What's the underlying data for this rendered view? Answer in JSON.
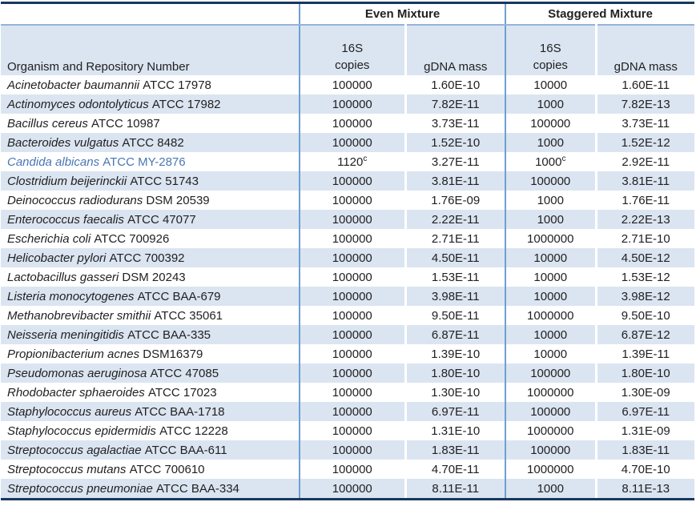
{
  "table": {
    "group_headers": {
      "even": "Even Mixture",
      "staggered": "Staggered Mixture"
    },
    "organism_header": "Organism and Repository Number",
    "sub_headers": {
      "copies_line1": "16S",
      "copies_line2": "copies",
      "gdna": "gDNA mass"
    },
    "colors": {
      "row_shading": "#dbe5f1",
      "section_divider_blue": "#6f9fd3",
      "header_underline_blue": "#95b3d7",
      "outer_rule_dark": "#17375e",
      "highlight_text_blue": "#4877b3"
    },
    "rows": [
      {
        "species": "Acinetobacter baumannii",
        "repo": "ATCC 17978",
        "even_copies": "100000",
        "even_gdna": "1.60E-10",
        "stag_copies": "10000",
        "stag_gdna": "1.60E-11"
      },
      {
        "species": "Actinomyces odontolyticus",
        "repo": "ATCC 17982",
        "even_copies": "100000",
        "even_gdna": "7.82E-11",
        "stag_copies": "1000",
        "stag_gdna": "7.82E-13"
      },
      {
        "species": "Bacillus cereus",
        "repo": "ATCC 10987",
        "even_copies": "100000",
        "even_gdna": "3.73E-11",
        "stag_copies": "100000",
        "stag_gdna": "3.73E-11"
      },
      {
        "species": "Bacteroides vulgatus",
        "repo": "ATCC 8482",
        "even_copies": "100000",
        "even_gdna": "1.52E-10",
        "stag_copies": "1000",
        "stag_gdna": "1.52E-12"
      },
      {
        "species": "Candida albicans",
        "repo": "ATCC MY-2876",
        "even_copies": "1120",
        "even_copies_sup": "c",
        "even_gdna": "3.27E-11",
        "stag_copies": "1000",
        "stag_copies_sup": "c",
        "stag_gdna": "2.92E-11",
        "highlight": true
      },
      {
        "species": "Clostridium beijerinckii",
        "repo": "ATCC 51743",
        "even_copies": "100000",
        "even_gdna": "3.81E-11",
        "stag_copies": "100000",
        "stag_gdna": "3.81E-11"
      },
      {
        "species": "Deinococcus radiodurans",
        "repo": "DSM 20539",
        "even_copies": "100000",
        "even_gdna": "1.76E-09",
        "stag_copies": "1000",
        "stag_gdna": "1.76E-11"
      },
      {
        "species": "Enterococcus faecalis",
        "repo": "ATCC 47077",
        "even_copies": "100000",
        "even_gdna": "2.22E-11",
        "stag_copies": "1000",
        "stag_gdna": "2.22E-13"
      },
      {
        "species": "Escherichia coli",
        "repo": "ATCC 700926",
        "even_copies": "100000",
        "even_gdna": "2.71E-11",
        "stag_copies": "1000000",
        "stag_gdna": "2.71E-10"
      },
      {
        "species": "Helicobacter pylori",
        "repo": "ATCC 700392",
        "even_copies": "100000",
        "even_gdna": "4.50E-11",
        "stag_copies": "10000",
        "stag_gdna": "4.50E-12"
      },
      {
        "species": "Lactobacillus gasseri",
        "repo": "DSM 20243",
        "even_copies": "100000",
        "even_gdna": "1.53E-11",
        "stag_copies": "10000",
        "stag_gdna": "1.53E-12"
      },
      {
        "species": "Listeria monocytogenes",
        "repo": "ATCC BAA-679",
        "even_copies": "100000",
        "even_gdna": "3.98E-11",
        "stag_copies": "10000",
        "stag_gdna": "3.98E-12"
      },
      {
        "species": "Methanobrevibacter smithii",
        "repo": "ATCC 35061",
        "even_copies": "100000",
        "even_gdna": "9.50E-11",
        "stag_copies": "1000000",
        "stag_gdna": "9.50E-10"
      },
      {
        "species": "Neisseria meningitidis",
        "repo": "ATCC BAA-335",
        "even_copies": "100000",
        "even_gdna": "6.87E-11",
        "stag_copies": "10000",
        "stag_gdna": "6.87E-12"
      },
      {
        "species": "Propionibacterium acnes",
        "repo": "DSM16379",
        "even_copies": "100000",
        "even_gdna": "1.39E-10",
        "stag_copies": "10000",
        "stag_gdna": "1.39E-11"
      },
      {
        "species": "Pseudomonas aeruginosa",
        "repo": "ATCC 47085",
        "even_copies": "100000",
        "even_gdna": "1.80E-10",
        "stag_copies": "100000",
        "stag_gdna": "1.80E-10"
      },
      {
        "species": "Rhodobacter sphaeroides",
        "repo": "ATCC 17023",
        "even_copies": "100000",
        "even_gdna": "1.30E-10",
        "stag_copies": "1000000",
        "stag_gdna": "1.30E-09"
      },
      {
        "species": "Staphylococcus aureus",
        "repo": "ATCC BAA-1718",
        "even_copies": "100000",
        "even_gdna": "6.97E-11",
        "stag_copies": "100000",
        "stag_gdna": "6.97E-11"
      },
      {
        "species": "Staphylococcus epidermidis",
        "repo": "ATCC 12228",
        "even_copies": "100000",
        "even_gdna": "1.31E-10",
        "stag_copies": "1000000",
        "stag_gdna": "1.31E-09"
      },
      {
        "species": "Streptococcus agalactiae",
        "repo": "ATCC BAA-611",
        "even_copies": "100000",
        "even_gdna": "1.83E-11",
        "stag_copies": "100000",
        "stag_gdna": "1.83E-11"
      },
      {
        "species": "Streptococcus mutans",
        "repo": "ATCC 700610",
        "even_copies": "100000",
        "even_gdna": "4.70E-11",
        "stag_copies": "1000000",
        "stag_gdna": "4.70E-10"
      },
      {
        "species": "Streptococcus pneumoniae",
        "repo": "ATCC BAA-334",
        "even_copies": "100000",
        "even_gdna": "8.11E-11",
        "stag_copies": "1000",
        "stag_gdna": "8.11E-13"
      }
    ]
  }
}
